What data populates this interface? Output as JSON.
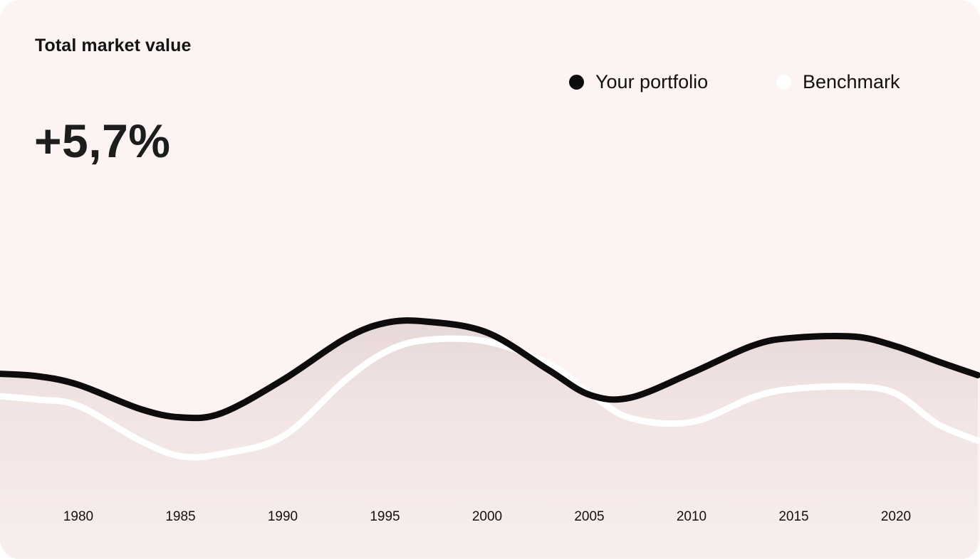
{
  "header": {
    "title": "Total market value",
    "change": "+5,7%"
  },
  "legend": [
    {
      "label": "Your portfolio",
      "color": "#0d0b0b"
    },
    {
      "label": "Benchmark",
      "color": "#ffffff"
    }
  ],
  "chart_data": {
    "type": "line",
    "title": "Total market value",
    "xlabel": "",
    "ylabel": "",
    "grid": false,
    "legend_position": "top-right",
    "x_tick_labels": [
      "1980",
      "1985",
      "1990",
      "1995",
      "2000",
      "2005",
      "2010",
      "2015",
      "2020"
    ],
    "x": [
      1976,
      1978,
      1980,
      1983,
      1985,
      1987,
      1990,
      1993,
      1995,
      1997,
      2000,
      2003,
      2005,
      2007,
      2010,
      2013,
      2015,
      2018,
      2020,
      2022,
      2024
    ],
    "ylim": [
      0,
      100
    ],
    "series": [
      {
        "name": "Your portfolio",
        "color": "#0d0b0b",
        "values": [
          60.5,
          59.8,
          57.5,
          51.0,
          48.7,
          49.8,
          58.8,
          69.8,
          74.2,
          74.6,
          71.6,
          61.5,
          54.8,
          54.0,
          60.7,
          68.1,
          70.2,
          70.5,
          67.9,
          63.9,
          60.1
        ]
      },
      {
        "name": "Benchmark",
        "color": "#ffffff",
        "values": [
          54.5,
          53.5,
          51.8,
          42.5,
          38.2,
          38.8,
          43.5,
          58.5,
          66.3,
          69.6,
          69.2,
          63.2,
          55.3,
          48.5,
          47.4,
          54.1,
          56.4,
          57.0,
          55.1,
          47.0,
          42.4
        ]
      }
    ]
  }
}
